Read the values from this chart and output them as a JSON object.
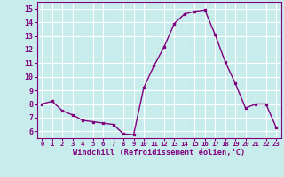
{
  "x": [
    0,
    1,
    2,
    3,
    4,
    5,
    6,
    7,
    8,
    9,
    10,
    11,
    12,
    13,
    14,
    15,
    16,
    17,
    18,
    19,
    20,
    21,
    22,
    23
  ],
  "y": [
    8.0,
    8.2,
    7.5,
    7.2,
    6.8,
    6.7,
    6.6,
    6.5,
    5.8,
    5.75,
    9.2,
    10.8,
    12.2,
    13.9,
    14.6,
    14.8,
    14.9,
    13.1,
    11.1,
    9.5,
    7.7,
    8.0,
    8.0,
    6.3
  ],
  "line_color": "#800080",
  "marker_color": "#800080",
  "bg_color": "#c8ecec",
  "grid_color": "#ffffff",
  "xlabel": "Windchill (Refroidissement éolien,°C)",
  "xlabel_color": "#800080",
  "tick_color": "#800080",
  "ylim": [
    5.5,
    15.5
  ],
  "xlim": [
    -0.5,
    23.5
  ],
  "yticks": [
    6,
    7,
    8,
    9,
    10,
    11,
    12,
    13,
    14,
    15
  ],
  "xticks": [
    0,
    1,
    2,
    3,
    4,
    5,
    6,
    7,
    8,
    9,
    10,
    11,
    12,
    13,
    14,
    15,
    16,
    17,
    18,
    19,
    20,
    21,
    22,
    23
  ],
  "xtick_labels": [
    "0",
    "1",
    "2",
    "3",
    "4",
    "5",
    "6",
    "7",
    "8",
    "9",
    "10",
    "11",
    "12",
    "13",
    "14",
    "15",
    "16",
    "17",
    "18",
    "19",
    "20",
    "21",
    "22",
    "23"
  ]
}
